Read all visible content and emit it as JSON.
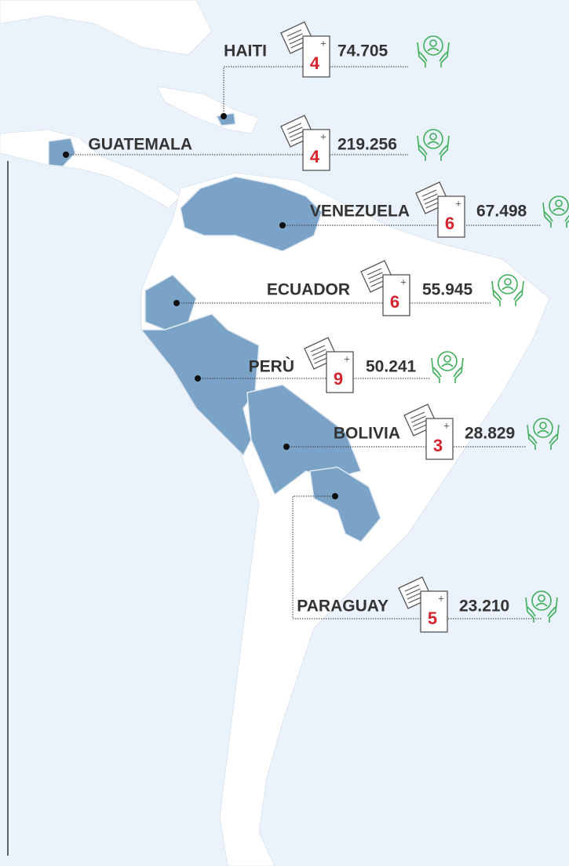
{
  "countries": [
    {
      "name": "HAITI",
      "projects": 4,
      "beneficiaries": "74.705"
    },
    {
      "name": "GUATEMALA",
      "projects": 4,
      "beneficiaries": "219.256"
    },
    {
      "name": "VENEZUELA",
      "projects": 6,
      "beneficiaries": "67.498"
    },
    {
      "name": "ECUADOR",
      "projects": 6,
      "beneficiaries": "55.945"
    },
    {
      "name": "PERÙ",
      "projects": 9,
      "beneficiaries": "50.241"
    },
    {
      "name": "BOLIVIA",
      "projects": 3,
      "beneficiaries": "28.829"
    },
    {
      "name": "PARAGUAY",
      "projects": 5,
      "beneficiaries": "23.210"
    }
  ]
}
